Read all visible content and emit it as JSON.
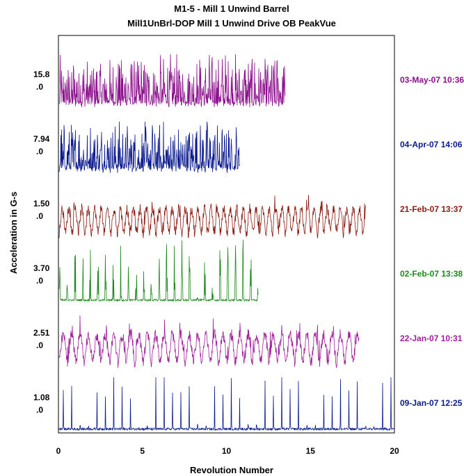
{
  "chart_data": {
    "type": "line",
    "title": "M1-5 - Mill 1 Unwind Barrel",
    "subtitle": "Mill1UnBrl-DOP    Mill 1 Unwind Drive OB PeakVue",
    "xlabel": "Revolution Number",
    "ylabel": "Acceleration in G-s",
    "xlim": [
      0,
      20
    ],
    "x_ticks": [
      "0",
      "5",
      "10",
      "15",
      "20"
    ],
    "series": [
      {
        "date": "03-May-07  10:36",
        "scale_max": "15.8",
        "scale_min": ".0",
        "x_end": 13.5,
        "color": "#8b0f8b",
        "peaks_per_rev": 5.2,
        "style": "dense"
      },
      {
        "date": "04-Apr-07  14:06",
        "scale_max": "7.94",
        "scale_min": ".0",
        "x_end": 10.8,
        "color": "#0b1a8c",
        "peaks_per_rev": 4.6,
        "style": "dense"
      },
      {
        "date": "21-Feb-07  13:37",
        "scale_max": "1.50",
        "scale_min": ".0",
        "x_end": 18.3,
        "color": "#8b1a12",
        "peaks_per_rev": 2.6,
        "style": "humps"
      },
      {
        "date": "02-Feb-07  13:38",
        "scale_max": "3.70",
        "scale_min": ".0",
        "x_end": 11.9,
        "color": "#1d8a1d",
        "peaks_per_rev": 2.2,
        "style": "bursts"
      },
      {
        "date": "22-Jan-07  10:31",
        "scale_max": "2.51",
        "scale_min": ".0",
        "x_end": 17.9,
        "color": "#a0209a",
        "peaks_per_rev": 2.0,
        "style": "humps"
      },
      {
        "date": "09-Jan-07  12:25",
        "scale_max": "1.08",
        "scale_min": ".0",
        "x_end": 20.0,
        "color": "#0b1a8c",
        "peaks_per_rev": 2.0,
        "style": "spikes"
      }
    ]
  }
}
